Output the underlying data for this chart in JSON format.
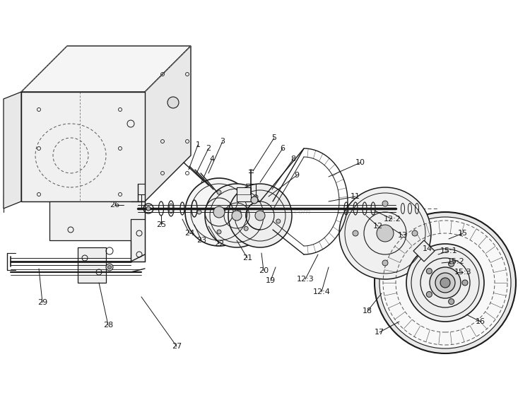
{
  "bg_color": "#ffffff",
  "line_color": "#1a1a1a",
  "figsize": [
    7.5,
    5.56
  ],
  "dpi": 100,
  "watermark": "ReplacementParts.com"
}
